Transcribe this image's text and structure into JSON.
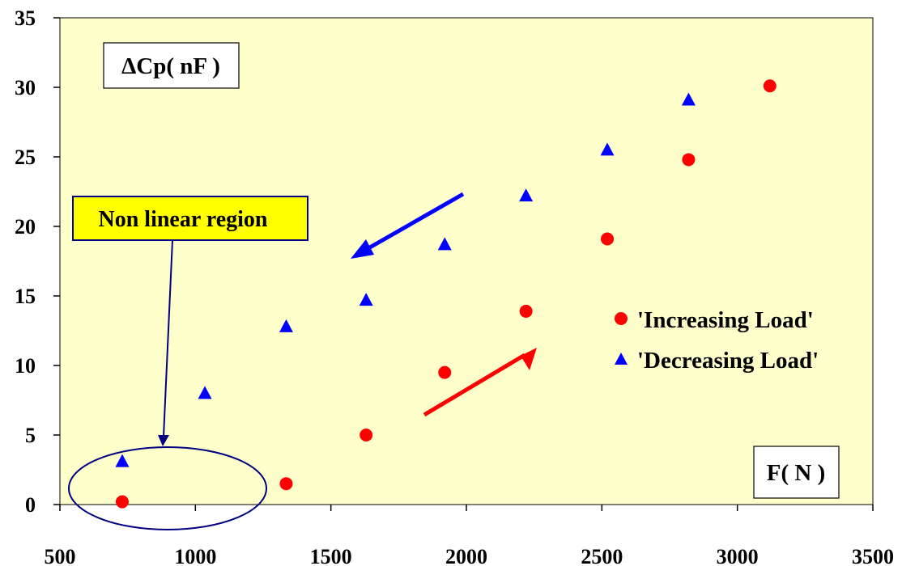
{
  "chart_data": {
    "type": "scatter",
    "ylabel": "ΔCp( nF )",
    "xlabel": "F( N )",
    "xlim": [
      500,
      3500
    ],
    "ylim": [
      0,
      35
    ],
    "xticks": [
      500,
      1000,
      1500,
      2000,
      2500,
      3000,
      3500
    ],
    "yticks": [
      0,
      5,
      10,
      15,
      20,
      25,
      30,
      35
    ],
    "grid": false,
    "legend_position": "right",
    "background_color": "#ffffcc",
    "series": [
      {
        "name": "'Increasing Load'",
        "marker": "circle",
        "color": "#ff0000",
        "x": [
          730,
          1335,
          1630,
          1920,
          2220,
          2520,
          2820,
          3120
        ],
        "y": [
          0.2,
          1.5,
          5.0,
          9.5,
          13.9,
          19.1,
          24.8,
          30.1
        ]
      },
      {
        "name": "'Decreasing Load'",
        "marker": "triangle",
        "color": "#0000ff",
        "x": [
          730,
          1035,
          1335,
          1630,
          1920,
          2220,
          2520,
          2820
        ],
        "y": [
          3.1,
          8.0,
          12.8,
          14.7,
          18.7,
          22.2,
          25.5,
          29.1
        ]
      }
    ],
    "annotations": {
      "nonlinear_label": "Non linear region",
      "nonlinear_label_bg": "#ffff00",
      "ellipse_color": "#000080"
    }
  }
}
